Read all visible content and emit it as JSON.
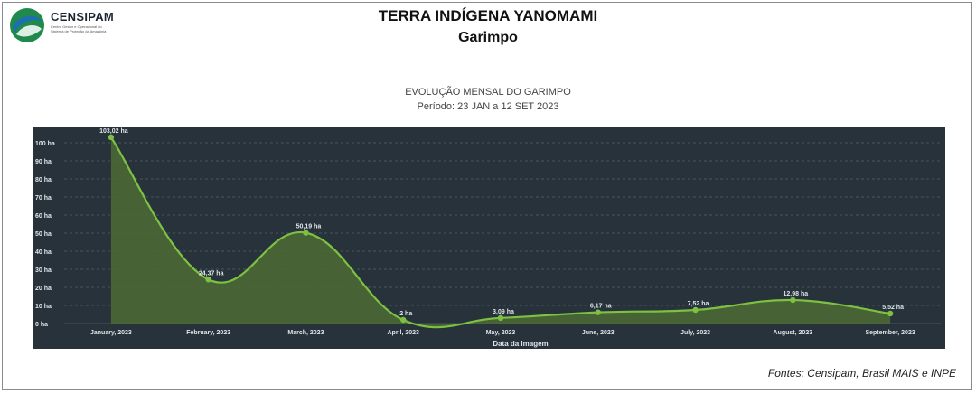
{
  "header": {
    "org_name": "CENSIPAM",
    "org_subtitle": "Centro Gestor e Operacional do Sistema de Proteção da Amazônia",
    "title": "TERRA INDÍGENA YANOMAMI",
    "subtitle": "Garimpo"
  },
  "chart_header": {
    "title": "EVOLUÇÃO MENSAL DO GARIMPO",
    "period": "Período: 23 JAN a 12 SET 2023"
  },
  "footer": {
    "sources": "Fontes: Censipam, Brasil MAIS e INPE"
  },
  "colors": {
    "panel_bg": "#27323a",
    "line": "#7dc142",
    "area": "#4e6b34",
    "grid": "#4a5560",
    "text": "#dfe5ea"
  },
  "chart_data": {
    "type": "area",
    "categories": [
      "January, 2023",
      "February, 2023",
      "March, 2023",
      "April, 2023",
      "May, 2023",
      "June, 2023",
      "July, 2023",
      "August, 2023",
      "September, 2023"
    ],
    "values": [
      103.02,
      24.37,
      50.19,
      2,
      3.09,
      6.17,
      7.52,
      12.98,
      5.52
    ],
    "data_labels": [
      "103,02 ha",
      "24,37 ha",
      "50,19 ha",
      "2 ha",
      "3,09 ha",
      "6,17 ha",
      "7,52 ha",
      "12,98 ha",
      "5,52 ha"
    ],
    "y_ticks": [
      0,
      10,
      20,
      30,
      40,
      50,
      60,
      70,
      80,
      90,
      100
    ],
    "y_tick_labels": [
      "0 ha",
      "10 ha",
      "20 ha",
      "30 ha",
      "40 ha",
      "50 ha",
      "60 ha",
      "70 ha",
      "80 ha",
      "90 ha",
      "100 ha"
    ],
    "xlabel": "Data da Imagem",
    "ylim": [
      0,
      103
    ],
    "grid": true,
    "smooth": true
  }
}
